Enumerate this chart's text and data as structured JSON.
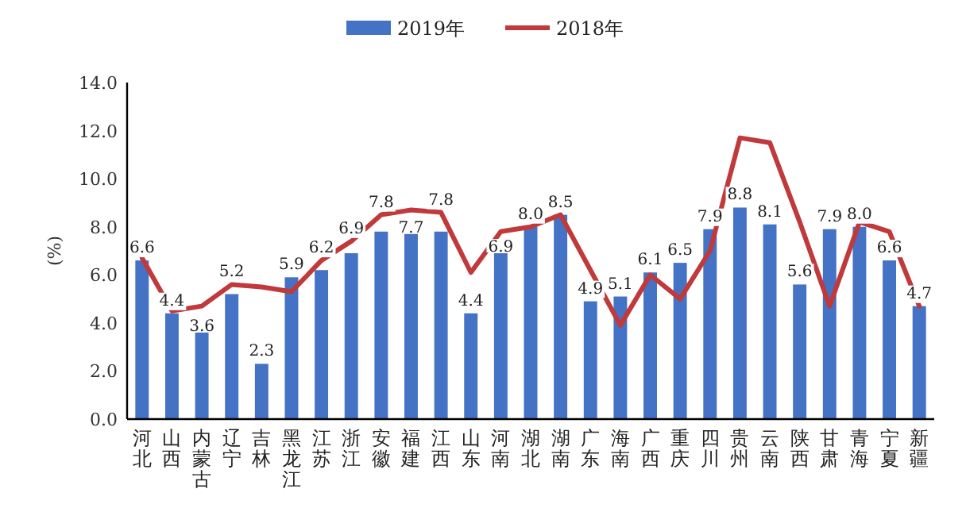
{
  "chart_data": {
    "type": "bar",
    "categories": [
      "河北",
      "山西",
      "内蒙古",
      "辽宁",
      "吉林",
      "黑龙江",
      "江苏",
      "浙江",
      "安徽",
      "福建",
      "江西",
      "山东",
      "河南",
      "湖北",
      "湖南",
      "广东",
      "海南",
      "广西",
      "重庆",
      "四川",
      "贵州",
      "云南",
      "陕西",
      "甘肃",
      "青海",
      "宁夏",
      "新疆"
    ],
    "series": [
      {
        "name": "2019年",
        "type": "bar",
        "color": "#4472c4",
        "values": [
          6.6,
          4.4,
          3.6,
          5.2,
          2.3,
          5.9,
          6.2,
          6.9,
          7.8,
          7.7,
          7.8,
          4.4,
          6.9,
          8.0,
          8.5,
          4.9,
          5.1,
          6.1,
          6.5,
          7.9,
          8.8,
          8.1,
          5.6,
          7.9,
          8.0,
          6.6,
          4.7
        ],
        "value_labels": [
          "6.6",
          "4.4",
          "3.6",
          "5.2",
          "2.3",
          "5.9",
          "6.2",
          "6.9",
          "7.8",
          "7.7",
          "7.8",
          "4.4",
          "6.9",
          "8.0",
          "8.5",
          "4.9",
          "5.1",
          "6.1",
          "6.5",
          "7.9",
          "8.8",
          "8.1",
          "5.6",
          "7.9",
          "8.0",
          "6.6",
          "4.7"
        ]
      },
      {
        "name": "2018年",
        "type": "line",
        "color": "#c0393b",
        "values": [
          6.7,
          4.5,
          4.7,
          5.6,
          5.5,
          5.3,
          6.6,
          7.4,
          8.5,
          8.7,
          8.6,
          6.1,
          7.8,
          8.0,
          8.5,
          6.2,
          3.9,
          6.0,
          5.0,
          7.0,
          11.7,
          11.5,
          8.2,
          4.7,
          8.2,
          7.8,
          4.7
        ]
      }
    ],
    "ylabel": "(%)",
    "ylim": [
      0,
      14
    ],
    "yticks": [
      {
        "value": 0,
        "label": "0.0"
      },
      {
        "value": 2,
        "label": "2.0"
      },
      {
        "value": 4,
        "label": "4.0"
      },
      {
        "value": 6,
        "label": "6.0"
      },
      {
        "value": 8,
        "label": "8.0"
      },
      {
        "value": 10,
        "label": "10.0"
      },
      {
        "value": 12,
        "label": "12.0"
      },
      {
        "value": 14,
        "label": "14.0"
      }
    ],
    "legend": "top",
    "grid": false
  }
}
